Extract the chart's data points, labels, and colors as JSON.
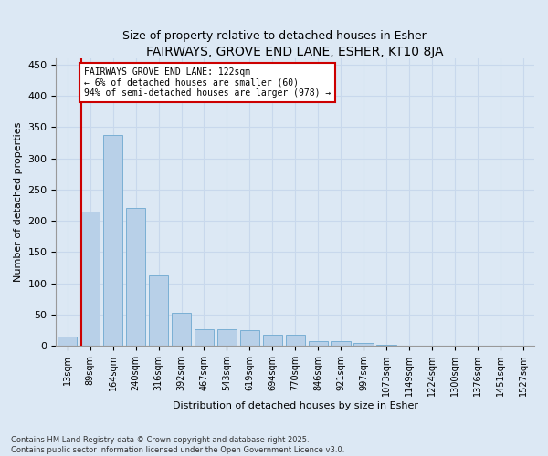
{
  "title": "FAIRWAYS, GROVE END LANE, ESHER, KT10 8JA",
  "subtitle": "Size of property relative to detached houses in Esher",
  "xlabel": "Distribution of detached houses by size in Esher",
  "ylabel": "Number of detached properties",
  "categories": [
    "13sqm",
    "89sqm",
    "164sqm",
    "240sqm",
    "316sqm",
    "392sqm",
    "467sqm",
    "543sqm",
    "619sqm",
    "694sqm",
    "770sqm",
    "846sqm",
    "921sqm",
    "997sqm",
    "1073sqm",
    "1149sqm",
    "1224sqm",
    "1300sqm",
    "1376sqm",
    "1451sqm",
    "1527sqm"
  ],
  "values": [
    15,
    215,
    338,
    220,
    112,
    53,
    27,
    26,
    25,
    18,
    18,
    8,
    7,
    4,
    1,
    0,
    0,
    0,
    0,
    0,
    0
  ],
  "bar_color": "#b8d0e8",
  "bar_edge_color": "#7aafd4",
  "annotation_text": "FAIRWAYS GROVE END LANE: 122sqm\n← 6% of detached houses are smaller (60)\n94% of semi-detached houses are larger (978) →",
  "annotation_box_color": "#ffffff",
  "annotation_box_edge_color": "#cc0000",
  "red_line_x": 0.6,
  "ylim": [
    0,
    460
  ],
  "yticks": [
    0,
    50,
    100,
    150,
    200,
    250,
    300,
    350,
    400,
    450
  ],
  "grid_color": "#c8d8ec",
  "background_color": "#dce8f4",
  "footnote": "Contains HM Land Registry data © Crown copyright and database right 2025.\nContains public sector information licensed under the Open Government Licence v3.0.",
  "title_fontsize": 10,
  "subtitle_fontsize": 9,
  "axis_label_fontsize": 8,
  "tick_fontsize": 7,
  "annotation_fontsize": 7,
  "footnote_fontsize": 6
}
